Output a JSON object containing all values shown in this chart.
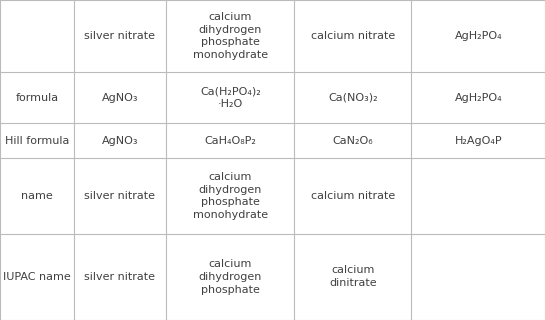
{
  "col_bounds": [
    0.0,
    0.135,
    0.305,
    0.54,
    0.755,
    1.0
  ],
  "row_tops": [
    1.0,
    0.775,
    0.615,
    0.505,
    0.27,
    0.0
  ],
  "header_row": [
    "",
    "silver nitrate",
    "calcium\ndihydrogen\nphosphate\nmonohydrate",
    "calcium nitrate",
    "AgH₂PO₄"
  ],
  "rows": [
    {
      "label": "formula",
      "cols": [
        "AgNO₃",
        "Ca(H₂PO₄)₂\n·H₂O",
        "Ca(NO₃)₂",
        "AgH₂PO₄"
      ]
    },
    {
      "label": "Hill formula",
      "cols": [
        "AgNO₃",
        "CaH₄O₈P₂",
        "CaN₂O₆",
        "H₂AgO₄P"
      ]
    },
    {
      "label": "name",
      "cols": [
        "silver nitrate",
        "calcium\ndihydrogen\nphosphate\nmonohydrate",
        "calcium nitrate",
        ""
      ]
    },
    {
      "label": "IUPAC name",
      "cols": [
        "silver nitrate",
        "calcium\ndihydrogen\nphosphate",
        "calcium\ndinitrate",
        ""
      ]
    }
  ],
  "bg_color": "#ffffff",
  "line_color": "#bbbbbb",
  "text_color": "#404040",
  "font_size": 8.0
}
